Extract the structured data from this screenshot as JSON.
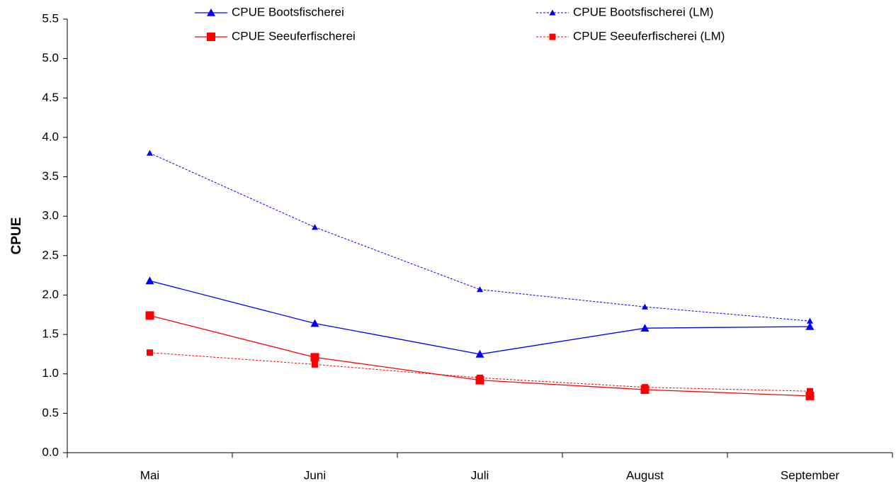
{
  "chart_data": {
    "type": "line",
    "y_label": "CPUE",
    "categories": [
      "Mai",
      "Juni",
      "Juli",
      "August",
      "September"
    ],
    "series": [
      {
        "name": "CPUE Bootsfischerei",
        "color": "#0000ff",
        "marker": "triangle",
        "dash": false,
        "values": [
          2.18,
          1.64,
          1.25,
          1.58,
          1.6
        ]
      },
      {
        "name": "CPUE Seeuferfischerei",
        "color": "#ff0000",
        "marker": "square",
        "dash": false,
        "values": [
          1.74,
          1.21,
          0.92,
          0.8,
          0.72
        ]
      },
      {
        "name": "CPUE Bootsfischerei (LM)",
        "color": "#0000ff",
        "marker": "triangle",
        "dash": true,
        "values": [
          3.8,
          2.86,
          2.07,
          1.85,
          1.67
        ]
      },
      {
        "name": "CPUE Seeuferfischerei (LM)",
        "color": "#ff0000",
        "marker": "square",
        "dash": true,
        "values": [
          1.27,
          1.12,
          0.95,
          0.83,
          0.78
        ]
      }
    ],
    "ylim": [
      0,
      5.5
    ],
    "yticks": [
      {
        "value": 0,
        "label": "0.0"
      },
      0.5,
      {
        "value": 1,
        "label": "1.0"
      },
      1.5,
      {
        "value": 2,
        "label": "2.0"
      },
      2.5,
      {
        "value": 3,
        "label": "3.0"
      },
      3.5,
      {
        "value": 4,
        "label": "4.0"
      },
      4.5,
      {
        "value": 5,
        "label": "5.0"
      },
      5.5
    ],
    "grid": false
  }
}
